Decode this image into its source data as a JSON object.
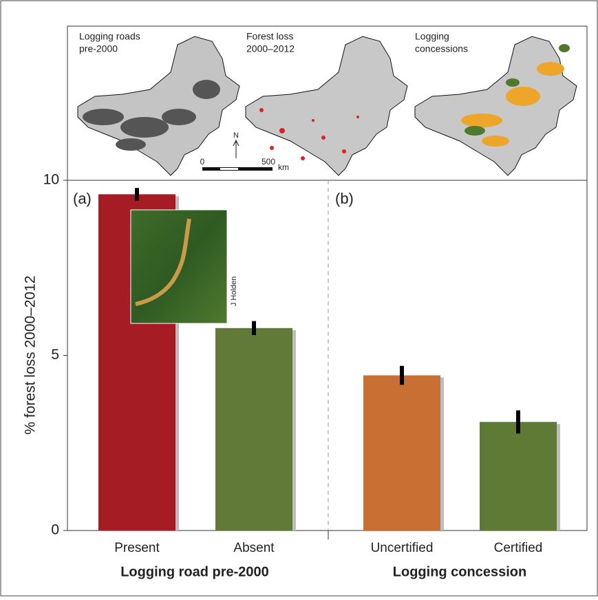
{
  "chart_data": {
    "type": "bar",
    "ylabel": "% forest loss 2000–2012",
    "categories": [
      "Present",
      "Absent",
      "Uncertified",
      "Certified"
    ],
    "values": [
      9.6,
      5.78,
      4.43,
      3.1
    ],
    "errors": [
      0.18,
      0.2,
      0.27,
      0.33
    ],
    "colors": [
      "#a51c24",
      "#627a37",
      "#c87034",
      "#5f7a34"
    ],
    "ylim": [
      0,
      10
    ],
    "yticks": [
      0,
      5,
      10
    ],
    "groups": [
      "Logging road pre-2000",
      "Logging concession"
    ],
    "panel_labels": [
      "(a)",
      "(b)"
    ],
    "photo_credit": "J Holden"
  },
  "maps": {
    "labels": [
      [
        "Logging roads",
        "pre-2000"
      ],
      [
        "Forest loss",
        "2000–2012"
      ],
      [
        "Logging",
        "concessions"
      ]
    ],
    "north": "N",
    "scale": [
      "0",
      "500",
      "km"
    ]
  }
}
